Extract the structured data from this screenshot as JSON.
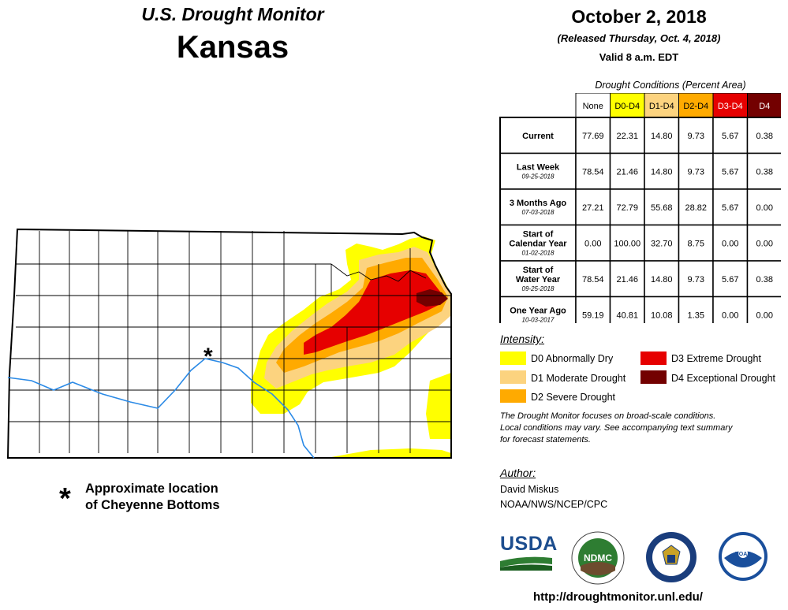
{
  "header": {
    "subtitle": "U.S. Drought Monitor",
    "title": "Kansas",
    "date": "October 2, 2018",
    "released": "(Released Thursday, Oct. 4, 2018)",
    "valid": "Valid 8 a.m. EDT"
  },
  "table": {
    "caption": "Drought Conditions (Percent Area)",
    "columns": [
      {
        "label": "None",
        "color": "#ffffff"
      },
      {
        "label": "D0-D4",
        "color": "#ffff00"
      },
      {
        "label": "D1-D4",
        "color": "#fcd37f"
      },
      {
        "label": "D2-D4",
        "color": "#ffaa00"
      },
      {
        "label": "D3-D4",
        "color": "#e60000"
      },
      {
        "label": "D4",
        "color": "#730000"
      }
    ],
    "rows": [
      {
        "label": "Current",
        "sublabel": "",
        "values": [
          "77.69",
          "22.31",
          "14.80",
          "9.73",
          "5.67",
          "0.38"
        ]
      },
      {
        "label": "Last Week",
        "sublabel": "09-25-2018",
        "values": [
          "78.54",
          "21.46",
          "14.80",
          "9.73",
          "5.67",
          "0.38"
        ]
      },
      {
        "label": "3 Months Ago",
        "sublabel": "07-03-2018",
        "values": [
          "27.21",
          "72.79",
          "55.68",
          "28.82",
          "5.67",
          "0.00"
        ]
      },
      {
        "label": "Start of Calendar Year",
        "sublabel": "01-02-2018",
        "values": [
          "0.00",
          "100.00",
          "32.70",
          "8.75",
          "0.00",
          "0.00"
        ]
      },
      {
        "label": "Start of Water Year",
        "sublabel": "09-25-2018",
        "values": [
          "78.54",
          "21.46",
          "14.80",
          "9.73",
          "5.67",
          "0.38"
        ]
      },
      {
        "label": "One Year Ago",
        "sublabel": "10-03-2017",
        "values": [
          "59.19",
          "40.81",
          "10.08",
          "1.35",
          "0.00",
          "0.00"
        ]
      }
    ]
  },
  "legend": {
    "title": "Intensity:",
    "items": [
      {
        "label": "D0 Abnormally Dry",
        "color": "#ffff00"
      },
      {
        "label": "D1 Moderate Drought",
        "color": "#fcd37f"
      },
      {
        "label": "D2 Severe Drought",
        "color": "#ffaa00"
      },
      {
        "label": "D3 Extreme Drought",
        "color": "#e60000"
      },
      {
        "label": "D4 Exceptional Drought",
        "color": "#730000"
      }
    ]
  },
  "note": {
    "line1": "The Drought Monitor focuses on broad-scale conditions.",
    "line2": "Local conditions may vary. See accompanying text summary",
    "line3": "for forecast statements."
  },
  "author": {
    "heading": "Author:",
    "name": "David Miskus",
    "org": "NOAA/NWS/NCEP/CPC"
  },
  "logos": {
    "usda": "USDA",
    "ndmc": "NDMC",
    "noaa": "NOAA"
  },
  "url": "http://droughtmonitor.unl.edu/",
  "map_annotation": {
    "symbol": "*",
    "line1": "Approximate location",
    "line2": "of Cheyenne Bottoms"
  },
  "colors": {
    "river": "#2b8ae6",
    "county_border": "#000000"
  }
}
